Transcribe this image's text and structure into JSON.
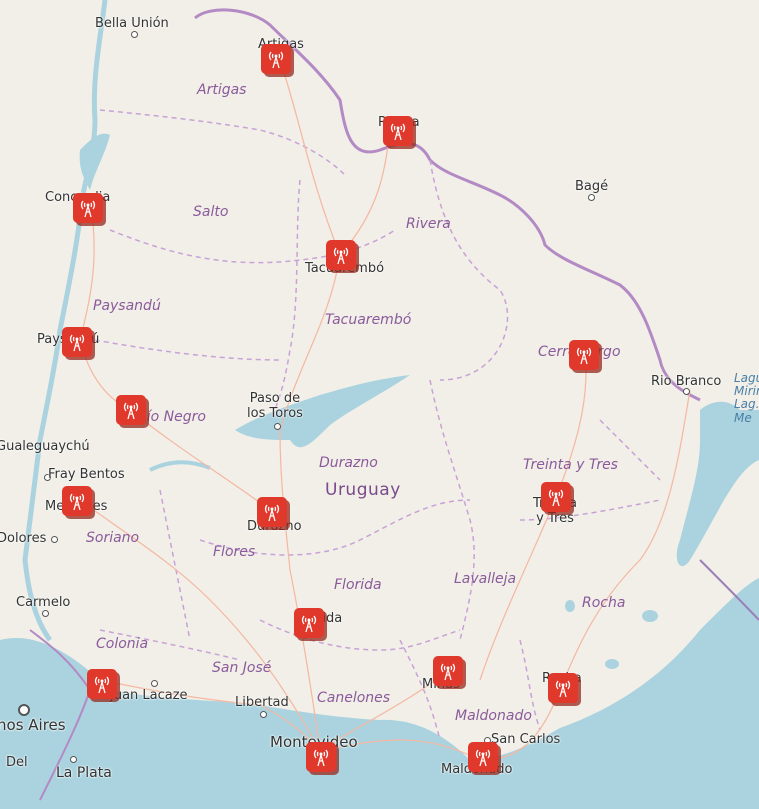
{
  "map": {
    "country": "Uruguay",
    "cities": [
      {
        "id": "bella-union",
        "name": "Bella Unión"
      },
      {
        "id": "artigas",
        "name": "Artigas"
      },
      {
        "id": "rivera",
        "name": "Rivera"
      },
      {
        "id": "concordia",
        "name": "Concordia"
      },
      {
        "id": "bage",
        "name": "Bagé"
      },
      {
        "id": "tacuarembo",
        "name": "Tacuarembó"
      },
      {
        "id": "paysandu",
        "name": "Paysandú"
      },
      {
        "id": "rio-branco",
        "name": "Rio Branco"
      },
      {
        "id": "paso-de-los-toros",
        "name": "Paso de\nlos Toros"
      },
      {
        "id": "gualeguaychu",
        "name": "Gualeguaychú"
      },
      {
        "id": "fray-bentos",
        "name": "Fray Bentos"
      },
      {
        "id": "mercedes",
        "name": "Mercedes"
      },
      {
        "id": "treinta-y-tres",
        "name": "Treinta\ny Tres"
      },
      {
        "id": "durazno",
        "name": "Durazno"
      },
      {
        "id": "dolores",
        "name": "Dolores"
      },
      {
        "id": "carmelo",
        "name": "Carmelo"
      },
      {
        "id": "florida",
        "name": "Florida"
      },
      {
        "id": "juan-lacaze",
        "name": "Juan Lacaze"
      },
      {
        "id": "minas",
        "name": "Minas"
      },
      {
        "id": "rocha",
        "name": "Rocha"
      },
      {
        "id": "libertad",
        "name": "Libertad"
      },
      {
        "id": "buenos-aires",
        "name": "Buenos Aires"
      },
      {
        "id": "montevideo",
        "name": "Montevideo"
      },
      {
        "id": "san-carlos",
        "name": "San Carlos"
      },
      {
        "id": "la-plata",
        "name": "La Plata"
      },
      {
        "id": "maldonado",
        "name": "Maldonado"
      },
      {
        "id": "del",
        "name": "Del"
      }
    ],
    "departments": [
      "Artigas",
      "Salto",
      "Rivera",
      "Paysandú",
      "Tacuarembó",
      "Cerro Largo",
      "Río Negro",
      "Durazno",
      "Treinta y Tres",
      "Soriano",
      "Flores",
      "Florida",
      "Lavalleja",
      "Rocha",
      "Colonia",
      "San José",
      "Canelones",
      "Maldonado"
    ],
    "lake_label": "Laguna\nMirim\nLag.\nMe",
    "marker_icon": "radio-tower-icon",
    "marker_color": "#e0382b",
    "marker_count": 16
  }
}
